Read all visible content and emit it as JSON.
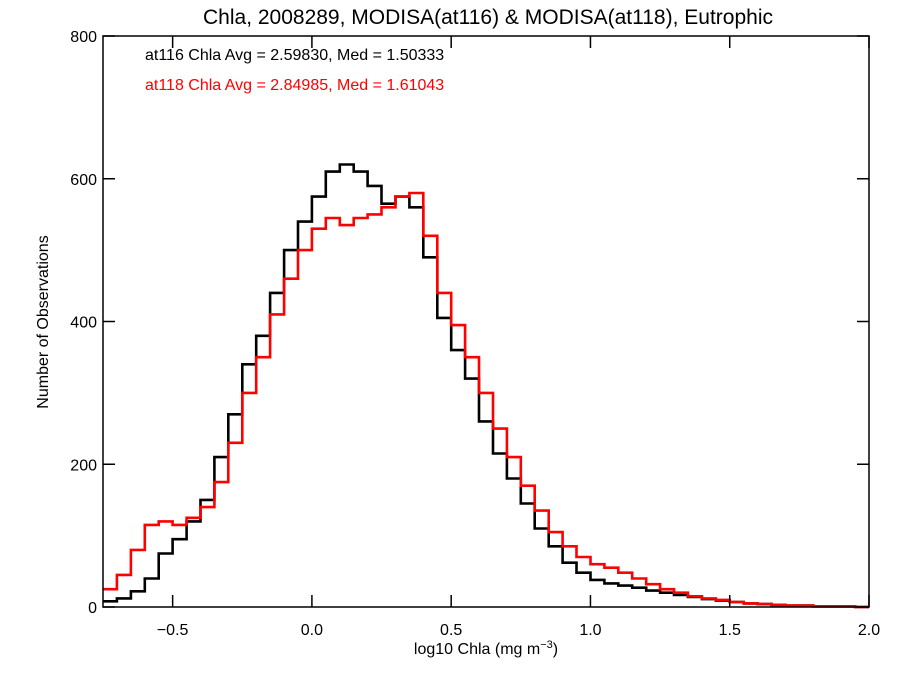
{
  "chart_data": {
    "type": "line",
    "title": "Chla, 2008289, MODISA(at116) & MODISA(at118), Eutrophic",
    "xlabel": "log10 Chla (mg m",
    "xlabel_sup": "−3",
    "xlabel_close": ")",
    "ylabel": "Number of Observations",
    "xlim": [
      -0.75,
      2.0
    ],
    "ylim": [
      0,
      800
    ],
    "xticks": [
      -0.5,
      0.0,
      0.5,
      1.0,
      1.5,
      2.0
    ],
    "xtick_labels": [
      "−0.5",
      "0.0",
      "0.5",
      "1.0",
      "1.5",
      "2.0"
    ],
    "yticks": [
      0,
      200,
      400,
      600,
      800
    ],
    "ytick_labels": [
      "0",
      "200",
      "400",
      "600",
      "800"
    ],
    "grid": false,
    "legend_placement": "top-left",
    "series": [
      {
        "name": "at116 Chla Avg = 2.59830, Med = 1.50333",
        "color": "#000000",
        "points": [
          [
            -0.75,
            8
          ],
          [
            -0.7,
            12
          ],
          [
            -0.65,
            22
          ],
          [
            -0.6,
            40
          ],
          [
            -0.55,
            75
          ],
          [
            -0.5,
            95
          ],
          [
            -0.45,
            120
          ],
          [
            -0.4,
            150
          ],
          [
            -0.35,
            210
          ],
          [
            -0.3,
            270
          ],
          [
            -0.25,
            340
          ],
          [
            -0.2,
            380
          ],
          [
            -0.15,
            440
          ],
          [
            -0.1,
            500
          ],
          [
            -0.05,
            540
          ],
          [
            0.0,
            575
          ],
          [
            0.05,
            610
          ],
          [
            0.1,
            620
          ],
          [
            0.15,
            610
          ],
          [
            0.2,
            590
          ],
          [
            0.25,
            565
          ],
          [
            0.3,
            575
          ],
          [
            0.35,
            560
          ],
          [
            0.4,
            490
          ],
          [
            0.45,
            405
          ],
          [
            0.5,
            360
          ],
          [
            0.55,
            320
          ],
          [
            0.6,
            260
          ],
          [
            0.65,
            215
          ],
          [
            0.7,
            180
          ],
          [
            0.75,
            145
          ],
          [
            0.8,
            110
          ],
          [
            0.85,
            85
          ],
          [
            0.9,
            62
          ],
          [
            0.95,
            48
          ],
          [
            1.0,
            38
          ],
          [
            1.05,
            33
          ],
          [
            1.1,
            30
          ],
          [
            1.15,
            27
          ],
          [
            1.2,
            23
          ],
          [
            1.25,
            20
          ],
          [
            1.3,
            17
          ],
          [
            1.35,
            14
          ],
          [
            1.4,
            11
          ],
          [
            1.45,
            9
          ],
          [
            1.5,
            7
          ],
          [
            1.55,
            5
          ],
          [
            1.6,
            4
          ],
          [
            1.65,
            3
          ],
          [
            1.7,
            2
          ],
          [
            1.75,
            2
          ],
          [
            1.8,
            1
          ],
          [
            1.85,
            1
          ],
          [
            1.9,
            1
          ],
          [
            1.95,
            0
          ],
          [
            2.0,
            0
          ]
        ]
      },
      {
        "name": "at118 Chla Avg = 2.84985, Med = 1.61043",
        "color": "#ff0000",
        "points": [
          [
            -0.75,
            25
          ],
          [
            -0.7,
            45
          ],
          [
            -0.65,
            80
          ],
          [
            -0.6,
            115
          ],
          [
            -0.55,
            120
          ],
          [
            -0.5,
            115
          ],
          [
            -0.45,
            125
          ],
          [
            -0.4,
            140
          ],
          [
            -0.35,
            175
          ],
          [
            -0.3,
            230
          ],
          [
            -0.25,
            300
          ],
          [
            -0.2,
            350
          ],
          [
            -0.15,
            410
          ],
          [
            -0.1,
            460
          ],
          [
            -0.05,
            500
          ],
          [
            0.0,
            530
          ],
          [
            0.05,
            545
          ],
          [
            0.1,
            535
          ],
          [
            0.15,
            545
          ],
          [
            0.2,
            550
          ],
          [
            0.25,
            560
          ],
          [
            0.3,
            575
          ],
          [
            0.35,
            580
          ],
          [
            0.4,
            520
          ],
          [
            0.45,
            440
          ],
          [
            0.5,
            395
          ],
          [
            0.55,
            350
          ],
          [
            0.6,
            300
          ],
          [
            0.65,
            250
          ],
          [
            0.7,
            210
          ],
          [
            0.75,
            170
          ],
          [
            0.8,
            135
          ],
          [
            0.85,
            105
          ],
          [
            0.9,
            85
          ],
          [
            0.95,
            70
          ],
          [
            1.0,
            60
          ],
          [
            1.05,
            55
          ],
          [
            1.1,
            48
          ],
          [
            1.15,
            40
          ],
          [
            1.2,
            32
          ],
          [
            1.25,
            25
          ],
          [
            1.3,
            20
          ],
          [
            1.35,
            15
          ],
          [
            1.4,
            12
          ],
          [
            1.45,
            10
          ],
          [
            1.5,
            7
          ],
          [
            1.55,
            5
          ],
          [
            1.6,
            4
          ],
          [
            1.65,
            3
          ],
          [
            1.7,
            2
          ],
          [
            1.75,
            2
          ],
          [
            1.8,
            1
          ],
          [
            1.85,
            1
          ],
          [
            1.9,
            1
          ],
          [
            1.95,
            0
          ],
          [
            2.0,
            0
          ]
        ]
      }
    ]
  }
}
